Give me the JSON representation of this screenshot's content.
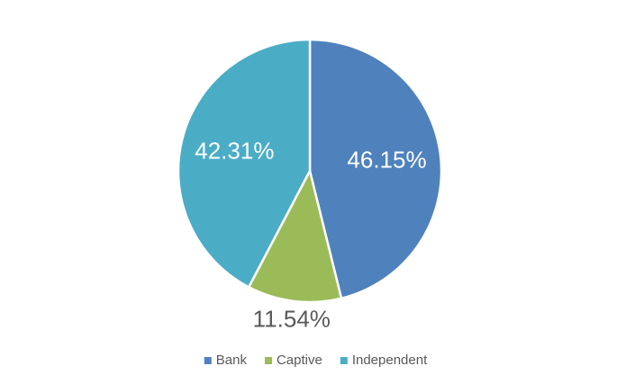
{
  "chart_data": {
    "type": "pie",
    "categories": [
      "Bank",
      "Captive",
      "Independent"
    ],
    "values": [
      46.15,
      11.54,
      42.31
    ],
    "value_labels": [
      "46.15%",
      "11.54%",
      "42.31%"
    ],
    "colors": [
      "#4f81bd",
      "#9bbb59",
      "#4bacc6"
    ],
    "legend": "bottom"
  }
}
